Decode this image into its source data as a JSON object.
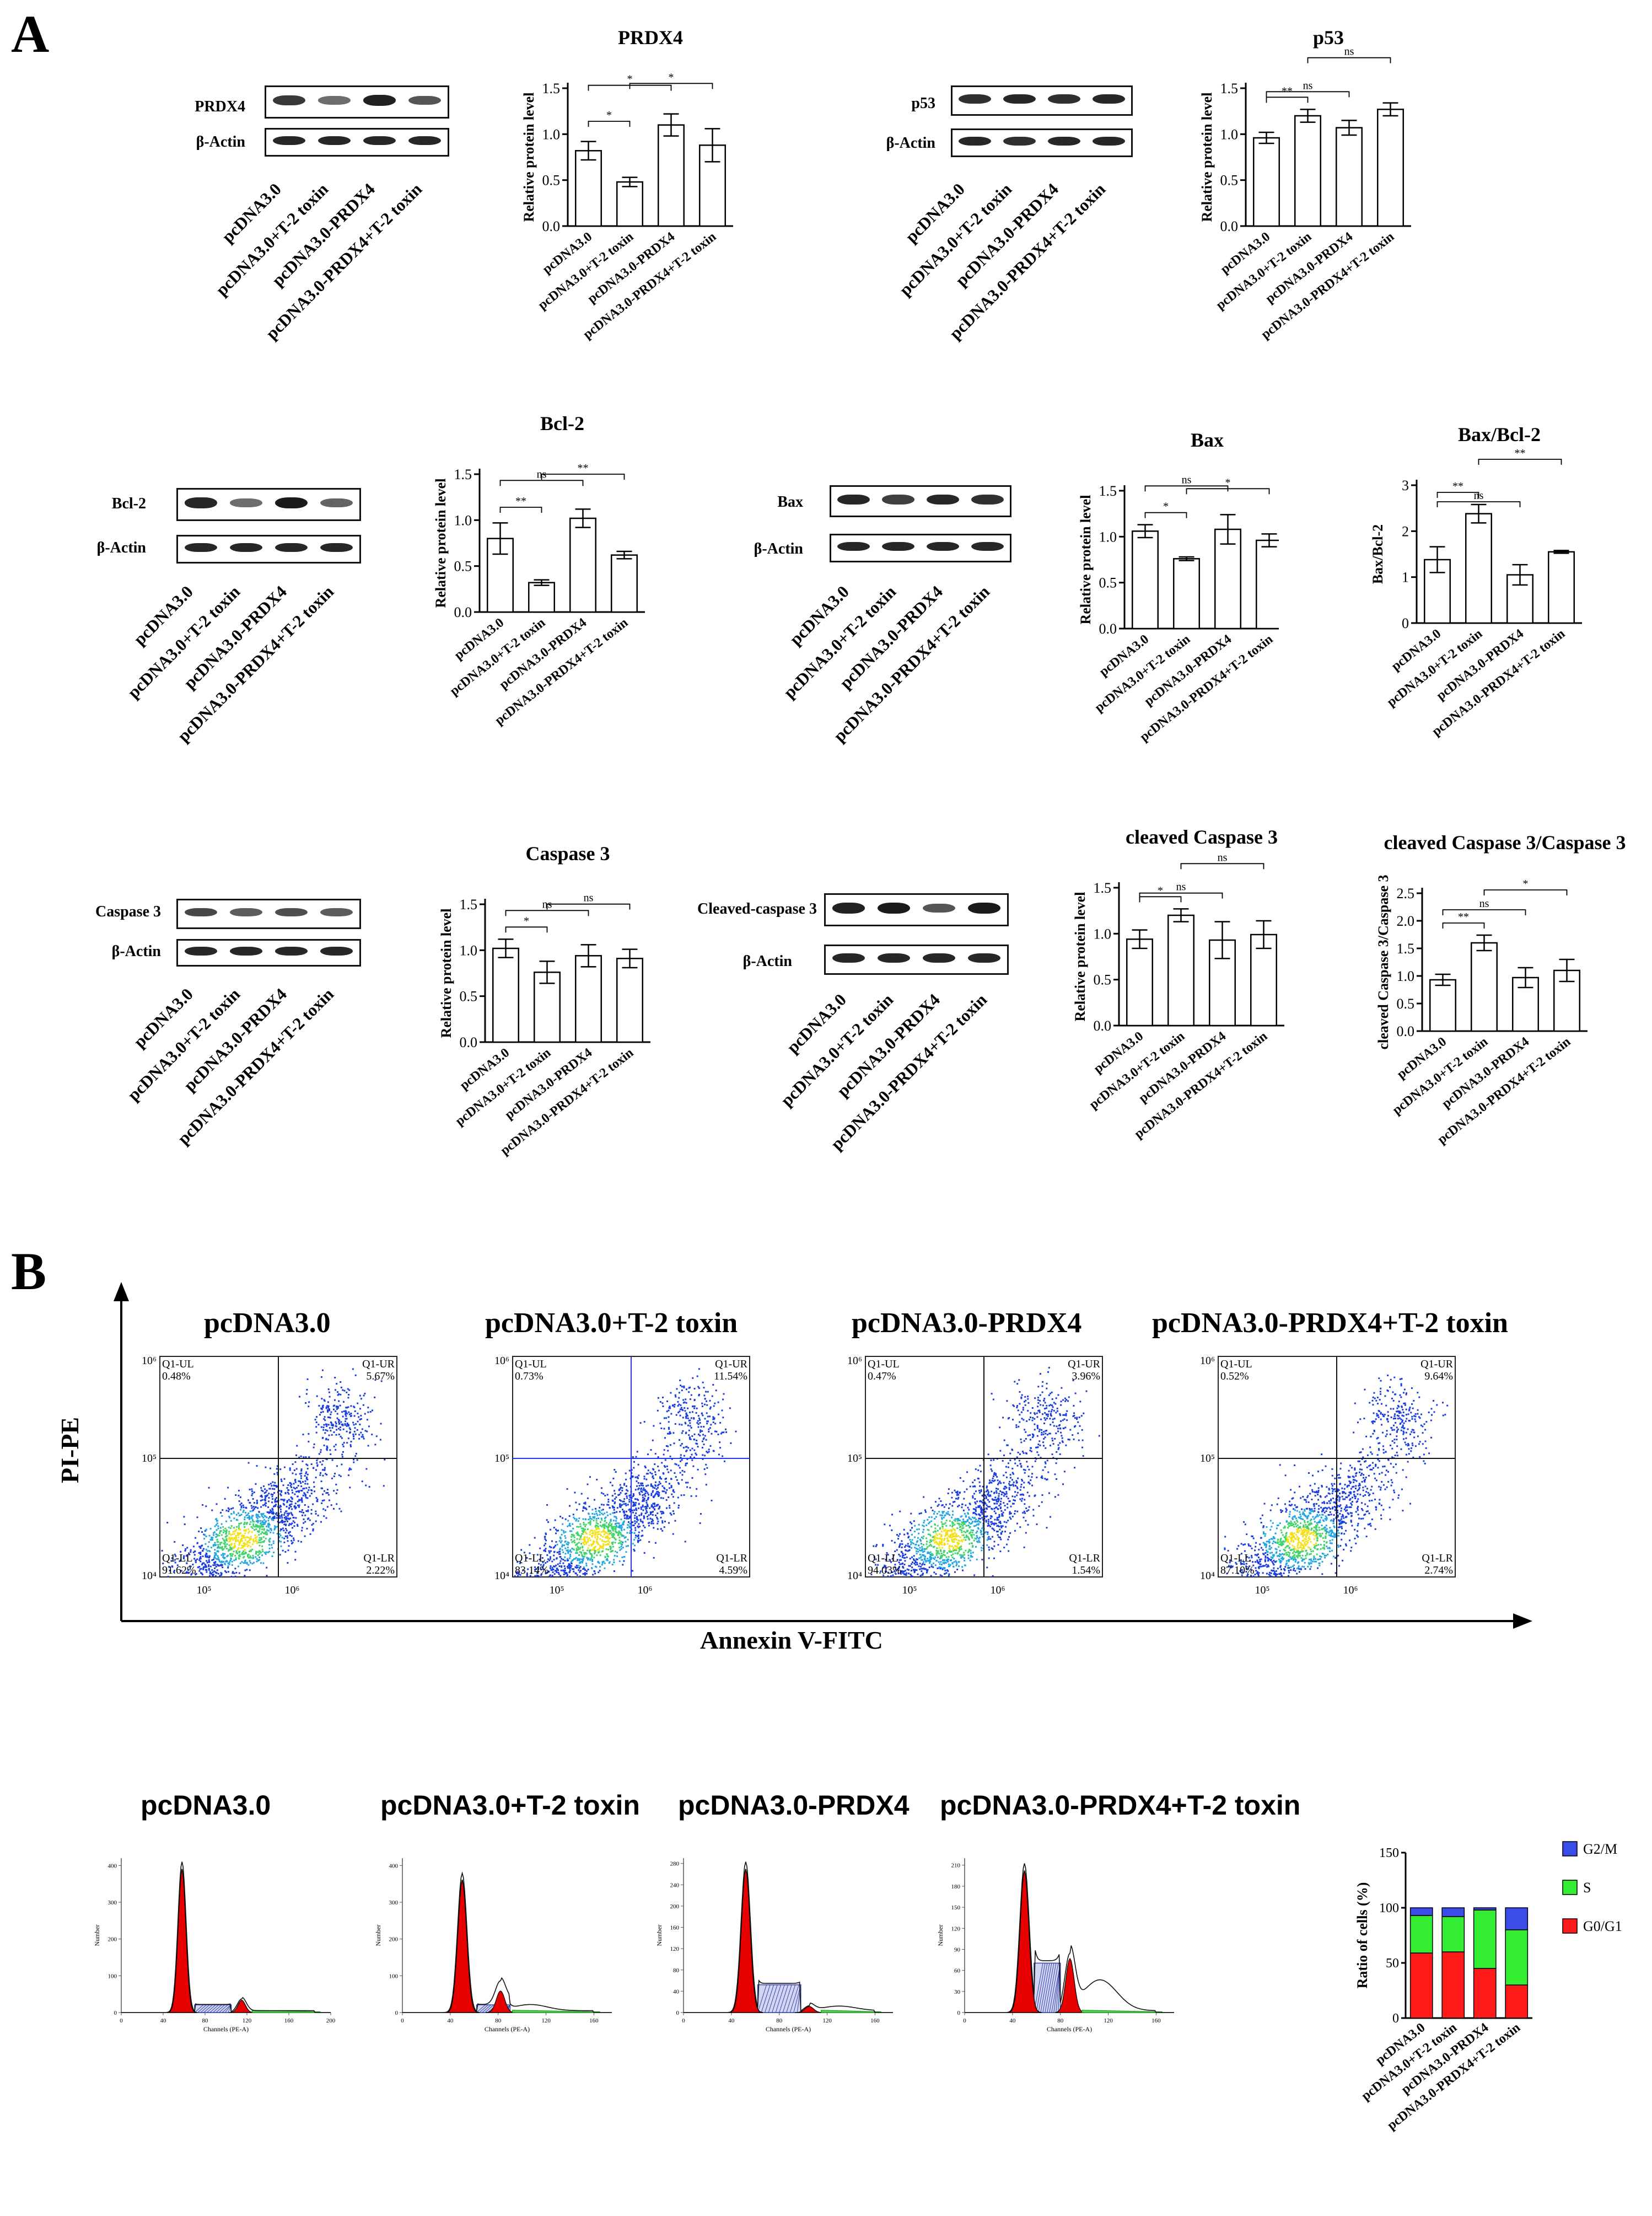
{
  "panel_labels": {
    "a": "A",
    "b": "B"
  },
  "groups": [
    "pcDNA3.0",
    "pcDNA3.0+T-2 toxin",
    "pcDNA3.0-PRDX4",
    "pcDNA3.0-PRDX4+T-2 toxin"
  ],
  "blots": [
    {
      "id": "prdx4",
      "label": "PRDX4",
      "intensity": [
        0.8,
        0.45,
        0.95,
        0.6
      ]
    },
    {
      "id": "prdx4_actin",
      "label": "β-Actin",
      "intensity": [
        0.9,
        0.9,
        0.9,
        0.9
      ]
    },
    {
      "id": "p53",
      "label": "p53",
      "intensity": [
        0.85,
        0.9,
        0.85,
        0.9
      ]
    },
    {
      "id": "p53_actin",
      "label": "β-Actin",
      "intensity": [
        0.9,
        0.85,
        0.9,
        0.9
      ]
    },
    {
      "id": "bcl2",
      "label": "Bcl-2",
      "intensity": [
        0.9,
        0.45,
        1.0,
        0.5
      ]
    },
    {
      "id": "bcl2_actin",
      "label": "β-Actin",
      "intensity": [
        0.9,
        0.9,
        0.9,
        0.9
      ]
    },
    {
      "id": "bax",
      "label": "Bax",
      "intensity": [
        0.9,
        0.75,
        0.9,
        0.85
      ]
    },
    {
      "id": "bax_actin",
      "label": "β-Actin",
      "intensity": [
        0.9,
        0.9,
        0.9,
        0.9
      ]
    },
    {
      "id": "casp3",
      "label": "Caspase 3",
      "intensity": [
        0.7,
        0.55,
        0.65,
        0.55
      ]
    },
    {
      "id": "casp3_actin",
      "label": "β-Actin",
      "intensity": [
        0.9,
        0.9,
        0.9,
        0.9
      ]
    },
    {
      "id": "ccasp3",
      "label": "Cleaved-caspase 3",
      "intensity": [
        0.95,
        1.0,
        0.6,
        1.0
      ]
    },
    {
      "id": "ccasp3_actin",
      "label": "β-Actin",
      "intensity": [
        0.9,
        0.9,
        0.9,
        0.9
      ]
    }
  ],
  "chart_data": [
    {
      "id": "c_prdx4",
      "type": "bar",
      "title": "PRDX4",
      "ylabel": "Relative protein level",
      "categories": [
        "pcDNA3.0",
        "pcDNA3.0+T-2 toxin",
        "pcDNA3.0-PRDX4",
        "pcDNA3.0-PRDX4+T-2 toxin"
      ],
      "values": [
        0.82,
        0.48,
        1.1,
        0.88
      ],
      "errors": [
        0.1,
        0.05,
        0.12,
        0.18
      ],
      "ylim": [
        0,
        1.5
      ],
      "ticks": [
        "0.0",
        "0.5",
        "1.0",
        "1.5"
      ],
      "significance": [
        {
          "from": 0,
          "to": 1,
          "label": "*"
        },
        {
          "from": 0,
          "to": 2,
          "label": "*"
        },
        {
          "from": 1,
          "to": 3,
          "label": "*"
        }
      ]
    },
    {
      "id": "c_p53",
      "type": "bar",
      "title": "p53",
      "ylabel": "Relative protein level",
      "categories": [
        "pcDNA3.0",
        "pcDNA3.0+T-2 toxin",
        "pcDNA3.0-PRDX4",
        "pcDNA3.0-PRDX4+T-2 toxin"
      ],
      "values": [
        0.96,
        1.2,
        1.07,
        1.27
      ],
      "errors": [
        0.06,
        0.07,
        0.08,
        0.07
      ],
      "ylim": [
        0,
        1.5
      ],
      "ticks": [
        "0.0",
        "0.5",
        "1.0",
        "1.5"
      ],
      "significance": [
        {
          "from": 0,
          "to": 1,
          "label": "**"
        },
        {
          "from": 0,
          "to": 2,
          "label": "ns"
        },
        {
          "from": 1,
          "to": 3,
          "label": "ns"
        }
      ]
    },
    {
      "id": "c_bcl2",
      "type": "bar",
      "title": "Bcl-2",
      "ylabel": "Relative protein level",
      "categories": [
        "pcDNA3.0",
        "pcDNA3.0+T-2 toxin",
        "pcDNA3.0-PRDX4",
        "pcDNA3.0-PRDX4+T-2 toxin"
      ],
      "values": [
        0.8,
        0.32,
        1.02,
        0.62
      ],
      "errors": [
        0.17,
        0.03,
        0.1,
        0.04
      ],
      "ylim": [
        0,
        1.5
      ],
      "ticks": [
        "0.0",
        "0.5",
        "1.0",
        "1.5"
      ],
      "significance": [
        {
          "from": 0,
          "to": 1,
          "label": "**"
        },
        {
          "from": 0,
          "to": 2,
          "label": "ns"
        },
        {
          "from": 1,
          "to": 3,
          "label": "**"
        }
      ]
    },
    {
      "id": "c_bax",
      "type": "bar",
      "title": "Bax",
      "ylabel": "Relative protein level",
      "categories": [
        "pcDNA3.0",
        "pcDNA3.0+T-2 toxin",
        "pcDNA3.0-PRDX4",
        "pcDNA3.0-PRDX4+T-2 toxin"
      ],
      "values": [
        1.06,
        0.76,
        1.08,
        0.96
      ],
      "errors": [
        0.07,
        0.02,
        0.16,
        0.07
      ],
      "ylim": [
        0,
        1.5
      ],
      "ticks": [
        "0.0",
        "0.5",
        "1.0",
        "1.5"
      ],
      "significance": [
        {
          "from": 0,
          "to": 1,
          "label": "*"
        },
        {
          "from": 0,
          "to": 2,
          "label": "ns"
        },
        {
          "from": 1,
          "to": 3,
          "label": "*"
        }
      ]
    },
    {
      "id": "c_baxbcl2",
      "type": "bar",
      "title": "Bax/Bcl-2",
      "ylabel": "Bax/Bcl-2",
      "categories": [
        "pcDNA3.0",
        "pcDNA3.0+T-2 toxin",
        "pcDNA3.0-PRDX4",
        "pcDNA3.0-PRDX4+T-2 toxin"
      ],
      "values": [
        1.38,
        2.38,
        1.05,
        1.55
      ],
      "errors": [
        0.28,
        0.2,
        0.22,
        0.03
      ],
      "ylim": [
        0,
        3
      ],
      "ticks": [
        "0",
        "1",
        "2",
        "3"
      ],
      "significance": [
        {
          "from": 0,
          "to": 1,
          "label": "**"
        },
        {
          "from": 0,
          "to": 2,
          "label": "ns"
        },
        {
          "from": 1,
          "to": 3,
          "label": "**"
        }
      ]
    },
    {
      "id": "c_casp3",
      "type": "bar",
      "title": "Caspase 3",
      "ylabel": "Relative protein level",
      "categories": [
        "pcDNA3.0",
        "pcDNA3.0+T-2 toxin",
        "pcDNA3.0-PRDX4",
        "pcDNA3.0-PRDX4+T-2 toxin"
      ],
      "values": [
        1.02,
        0.76,
        0.94,
        0.91
      ],
      "errors": [
        0.1,
        0.12,
        0.12,
        0.1
      ],
      "ylim": [
        0,
        1.5
      ],
      "ticks": [
        "0.0",
        "0.5",
        "1.0",
        "1.5"
      ],
      "significance": [
        {
          "from": 0,
          "to": 1,
          "label": "*"
        },
        {
          "from": 0,
          "to": 2,
          "label": "ns"
        },
        {
          "from": 1,
          "to": 3,
          "label": "ns"
        }
      ]
    },
    {
      "id": "c_ccasp3",
      "type": "bar",
      "title": "cleaved Caspase 3",
      "ylabel": "Relative protein level",
      "categories": [
        "pcDNA3.0",
        "pcDNA3.0+T-2 toxin",
        "pcDNA3.0-PRDX4",
        "pcDNA3.0-PRDX4+T-2 toxin"
      ],
      "values": [
        0.94,
        1.2,
        0.93,
        0.99
      ],
      "errors": [
        0.1,
        0.07,
        0.2,
        0.15
      ],
      "ylim": [
        0,
        1.5
      ],
      "ticks": [
        "0.0",
        "0.5",
        "1.0",
        "1.5"
      ],
      "significance": [
        {
          "from": 0,
          "to": 1,
          "label": "*"
        },
        {
          "from": 0,
          "to": 2,
          "label": "ns"
        },
        {
          "from": 1,
          "to": 3,
          "label": "ns"
        }
      ]
    },
    {
      "id": "c_ratio",
      "type": "bar",
      "title": "cleaved Caspase 3/Caspase 3",
      "ylabel": "cleaved Caspase 3/Caspase 3",
      "categories": [
        "pcDNA3.0",
        "pcDNA3.0+T-2 toxin",
        "pcDNA3.0-PRDX4",
        "pcDNA3.0-PRDX4+T-2 toxin"
      ],
      "values": [
        0.93,
        1.6,
        0.97,
        1.1
      ],
      "errors": [
        0.1,
        0.14,
        0.18,
        0.2
      ],
      "ylim": [
        0,
        2.5
      ],
      "ticks": [
        "0.0",
        "0.5",
        "1.0",
        "1.5",
        "2.0",
        "2.5"
      ],
      "significance": [
        {
          "from": 0,
          "to": 1,
          "label": "**"
        },
        {
          "from": 0,
          "to": 2,
          "label": "ns"
        },
        {
          "from": 1,
          "to": 3,
          "label": "*"
        }
      ]
    },
    {
      "id": "c_cellcycle",
      "type": "bar",
      "stacked": true,
      "ylabel": "Ratio of cells (%)",
      "categories": [
        "pcDNA3.0",
        "pcDNA3.0+T-2 toxin",
        "pcDNA3.0-PRDX4",
        "pcDNA3.0-PRDX4+T-2 toxin"
      ],
      "ylim": [
        0,
        150
      ],
      "ticks": [
        "0",
        "50",
        "100",
        "150"
      ],
      "series": [
        {
          "name": "G0/G1",
          "color": "#ff1a1a",
          "values": [
            59,
            60,
            45,
            30
          ]
        },
        {
          "name": "S",
          "color": "#33ee33",
          "values": [
            34,
            32,
            53,
            50
          ]
        },
        {
          "name": "G2/M",
          "color": "#3a4de8",
          "values": [
            7,
            8,
            2,
            20
          ]
        }
      ]
    },
    {
      "id": "flow",
      "type": "scatter",
      "xlabel": "Annexin V-FITC",
      "ylabel": "PI-PE",
      "panels": [
        {
          "title": "pcDNA3.0",
          "UL": "0.48%",
          "UR": "5.67%",
          "LL": "91.62%",
          "LR": "2.22%"
        },
        {
          "title": "pcDNA3.0+T-2 toxin",
          "UL": "0.73%",
          "UR": "11.54%",
          "LL": "83.14%",
          "LR": "4.59%"
        },
        {
          "title": "pcDNA3.0-PRDX4",
          "UL": "0.47%",
          "UR": "3.96%",
          "LL": "94.03%",
          "LR": "1.54%"
        },
        {
          "title": "pcDNA3.0-PRDX4+T-2 toxin",
          "UL": "0.52%",
          "UR": "9.64%",
          "LL": "87.10%",
          "LR": "2.74%"
        }
      ],
      "quadrant_names": {
        "UL": "Q1-UL",
        "UR": "Q1-UR",
        "LL": "Q1-LL",
        "LR": "Q1-LR"
      },
      "x_ticks": [
        "10⁵",
        "10⁶"
      ],
      "y_ticks": [
        "10⁶",
        "10⁵",
        "10⁴"
      ]
    },
    {
      "id": "histograms",
      "type": "area",
      "xlabel": "Channels (PE-A)",
      "ylabel": "Number",
      "panels": [
        {
          "title": "pcDNA3.0",
          "xticks": [
            "0",
            "40",
            "80",
            "120",
            "160",
            "200"
          ],
          "yticks": [
            "0",
            "100",
            "200",
            "300",
            "400"
          ],
          "xmax": 200,
          "ymax": 420
        },
        {
          "title": "pcDNA3.0+T-2 toxin",
          "xticks": [
            "0",
            "40",
            "80",
            "120",
            "160"
          ],
          "yticks": [
            "0",
            "100",
            "200",
            "300",
            "400"
          ],
          "xmax": 175,
          "ymax": 420
        },
        {
          "title": "pcDNA3.0-PRDX4",
          "xticks": [
            "0",
            "40",
            "80",
            "120",
            "160"
          ],
          "yticks": [
            "0",
            "40",
            "80",
            "120",
            "160",
            "200",
            "240",
            "280"
          ],
          "xmax": 175,
          "ymax": 290
        },
        {
          "title": "pcDNA3.0-PRDX4+T-2 toxin",
          "xticks": [
            "0",
            "40",
            "80",
            "120",
            "160"
          ],
          "yticks": [
            "0",
            "30",
            "60",
            "90",
            "120",
            "150",
            "180",
            "210"
          ],
          "xmax": 175,
          "ymax": 220
        }
      ]
    }
  ]
}
